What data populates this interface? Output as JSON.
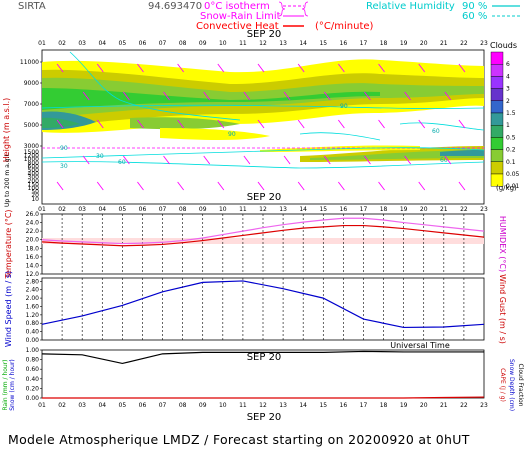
{
  "header": {
    "station": "SIRTA",
    "coords": "94.693470",
    "iso_label": "0°C isotherm",
    "snow_label": "Snow-Rain Limit",
    "conv_label": "Convective Heat",
    "conv_unit": "(°C/minute)",
    "rh_label": "Relative Humidity",
    "rh_90": "90 %",
    "rh_60": "60 %",
    "colors": {
      "iso": "#ff00ff",
      "rh": "#00dddd",
      "conv": "#ff0000",
      "snow": "#ff00ff"
    }
  },
  "hours": [
    "01",
    "02",
    "03",
    "04",
    "05",
    "06",
    "07",
    "08",
    "09",
    "10",
    "11",
    "12",
    "13",
    "14",
    "15",
    "16",
    "17",
    "18",
    "19",
    "20",
    "21",
    "22",
    "23"
  ],
  "date_label": "SEP 20",
  "universal_time": "Universal Time",
  "footer": "Modele Atmospherique LMDZ / Forecast starting on 20200920 at 0hUT",
  "panel1": {
    "ylabel": "Height (m a.s.l.)",
    "ylabel2": "Up to 200 m a.g.l.",
    "ticks_upper": [
      "11000",
      "9000",
      "7000",
      "5000",
      "3000"
    ],
    "ticks_lower": [
      "1500",
      "1200",
      "1000",
      "800",
      "600",
      "500",
      "400",
      "300",
      "200",
      "150",
      "100",
      "50",
      "20",
      "10"
    ],
    "legend_title": "Clouds",
    "legend_unit": "(g/kg)",
    "legend_levels": [
      "6",
      "4",
      "3",
      "2",
      "1.5",
      "1",
      "0.5",
      "0.2",
      "0.1",
      "0.05",
      "0.01"
    ],
    "legend_colors": [
      "#ff00ff",
      "#cc33ff",
      "#9933ff",
      "#6633cc",
      "#3366cc",
      "#339999",
      "#33aa66",
      "#33cc33",
      "#88cc33",
      "#cccc00",
      "#ffff00"
    ],
    "rh_contour_labels": [
      "90",
      "60",
      "30",
      "90",
      "90",
      "60",
      "60",
      "30"
    ]
  },
  "panel2": {
    "ylabel": "Temperature (°C)",
    "ylabel_right": "HUMIDEX (°C)",
    "ticks": [
      "26.0",
      "24.0",
      "22.0",
      "20.0",
      "18.0",
      "16.0",
      "14.0",
      "12.0"
    ],
    "chart_data": {
      "type": "line",
      "x": [
        "01",
        "02",
        "03",
        "04",
        "05",
        "06",
        "07",
        "08",
        "09",
        "10",
        "11",
        "12",
        "13",
        "14",
        "15",
        "16",
        "17",
        "18",
        "19",
        "20",
        "21",
        "22",
        "23"
      ],
      "ylim": [
        12,
        26
      ],
      "series": [
        {
          "values": [
            19.5,
            19.2,
            19.0,
            18.8,
            18.6,
            18.7,
            18.9,
            19.3,
            19.8,
            20.4,
            21.0,
            21.6,
            22.2,
            22.7,
            23.0,
            23.3,
            23.3,
            23.0,
            22.6,
            22.1,
            21.6,
            21.1,
            20.6
          ],
          "color": "#dd0000"
        },
        {
          "values": [
            20.0,
            19.7,
            19.5,
            19.3,
            19.1,
            19.2,
            19.4,
            19.8,
            20.4,
            21.2,
            22.0,
            22.8,
            23.5,
            24.1,
            24.6,
            25.0,
            25.0,
            24.6,
            24.0,
            23.5,
            23.0,
            22.5,
            22.0
          ],
          "color": "#ee66ee"
        }
      ]
    }
  },
  "panel3": {
    "ylabel": "Wind Speed (m / s)",
    "ylabel_right": "Wind Gust (m / s)",
    "ticks": [
      "2.80",
      "2.40",
      "2.00",
      "1.60",
      "1.20",
      "0.80",
      "0.40",
      "0.00"
    ],
    "chart_data": {
      "type": "line",
      "x": [
        "01",
        "03",
        "05",
        "07",
        "09",
        "11",
        "13",
        "15",
        "17",
        "19",
        "21",
        "23"
      ],
      "ylim": [
        0,
        2.96
      ],
      "series": [
        {
          "values": [
            0.75,
            1.15,
            1.65,
            2.3,
            2.75,
            2.82,
            2.45,
            2.0,
            1.0,
            0.6,
            0.62,
            0.75
          ],
          "color": "#0000cc"
        }
      ]
    }
  },
  "panel4": {
    "ylabel_rain": "Rain (mm / hour)",
    "ylabel_snow": "Snow (cm / hour)",
    "ylabel_right1": "CAPE (J / g)",
    "ylabel_right2": "Snow Depth (cm)",
    "ylabel_right3": "Cloud Fraction",
    "ticks": [
      "1.00",
      "0.80",
      "0.60",
      "0.40",
      "0.20",
      "0.00"
    ],
    "chart_data": {
      "type": "line",
      "x": [
        "01",
        "03",
        "05",
        "07",
        "09",
        "11",
        "13",
        "15",
        "17",
        "19",
        "21",
        "23"
      ],
      "ylim": [
        0,
        1
      ],
      "series": [
        {
          "values": [
            0.92,
            0.9,
            0.72,
            0.92,
            0.95,
            0.95,
            0.95,
            0.95,
            0.97,
            0.96,
            0.96,
            0.96
          ],
          "color": "#000000"
        },
        {
          "values": [
            0,
            0,
            0,
            0,
            0,
            0,
            0,
            0,
            0,
            0,
            0.01,
            0.02
          ],
          "color": "#dd0000"
        }
      ]
    }
  }
}
